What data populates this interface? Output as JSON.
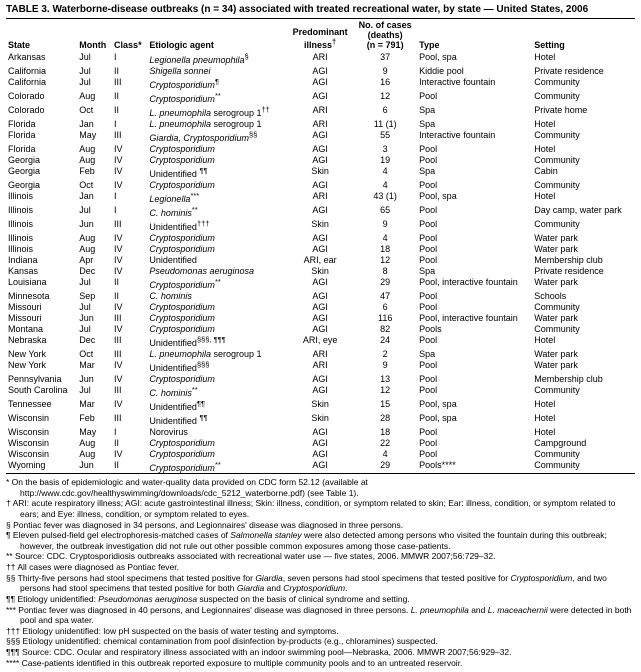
{
  "title": "TABLE 3. Waterborne-disease outbreaks (n = 34) associated with treated recreational water, by state — United States, 2006",
  "header": {
    "state": "State",
    "month": "Month",
    "class": "Class*",
    "agent": "Etiologic agent",
    "illness": "Predominant illness†",
    "cases": "No. of cases (deaths) (n = 791)",
    "type": "Type",
    "setting": "Setting"
  },
  "rows": [
    {
      "state": "Arkansas",
      "month": "Jul",
      "class": "I",
      "agent": "Legionella pneumophila§",
      "illness": "ARI",
      "cases": "37",
      "type": "Pool, spa",
      "setting": "Hotel"
    },
    {
      "state": "California",
      "month": "Jul",
      "class": "II",
      "agent": "Shigella sonnei",
      "illness": "AGI",
      "cases": "9",
      "type": "Kiddie pool",
      "setting": "Private residence"
    },
    {
      "state": "California",
      "month": "Jul",
      "class": "III",
      "agent": "Cryptosporidium¶",
      "illness": "AGI",
      "cases": "16",
      "type": "Interactive fountain",
      "setting": "Community"
    },
    {
      "state": "Colorado",
      "month": "Aug",
      "class": "II",
      "agent": "Cryptosporidium**",
      "illness": "AGI",
      "cases": "12",
      "type": "Pool",
      "setting": "Community"
    },
    {
      "state": "Colorado",
      "month": "Oct",
      "class": "II",
      "agent": "L. pneumophila serogroup 1††",
      "illness": "ARI",
      "cases": "6",
      "type": "Spa",
      "setting": "Private home"
    },
    {
      "state": "Florida",
      "month": "Jan",
      "class": "I",
      "agent": "L. pneumophila serogroup 1",
      "illness": "ARI",
      "cases": "11 (1)",
      "type": "Spa",
      "setting": "Hotel"
    },
    {
      "state": "Florida",
      "month": "May",
      "class": "III",
      "agent": "Giardia, Cryptosporidium§§",
      "illness": "AGI",
      "cases": "55",
      "type": "Interactive fountain",
      "setting": "Community"
    },
    {
      "state": "Florida",
      "month": "Aug",
      "class": "IV",
      "agent": "Cryptosporidium",
      "illness": "AGI",
      "cases": "3",
      "type": "Pool",
      "setting": "Hotel"
    },
    {
      "state": "Georgia",
      "month": "Aug",
      "class": "IV",
      "agent": "Cryptosporidium",
      "illness": "AGI",
      "cases": "19",
      "type": "Pool",
      "setting": "Community"
    },
    {
      "state": "Georgia",
      "month": "Feb",
      "class": "IV",
      "agent": "Unidentified ¶¶",
      "illness": "Skin",
      "cases": "4",
      "type": "Spa",
      "setting": "Cabin"
    },
    {
      "state": "Georgia",
      "month": "Oct",
      "class": "IV",
      "agent": "Cryptosporidium",
      "illness": "AGI",
      "cases": "4",
      "type": "Pool",
      "setting": "Community"
    },
    {
      "state": "Illinois",
      "month": "Jan",
      "class": "I",
      "agent": "Legionella***",
      "illness": "ARI",
      "cases": "43 (1)",
      "type": "Pool, spa",
      "setting": "Hotel"
    },
    {
      "state": "Illinois",
      "month": "Jul",
      "class": "I",
      "agent": "C. hominis**",
      "illness": "AGI",
      "cases": "65",
      "type": "Pool",
      "setting": "Day camp, water park"
    },
    {
      "state": "Illinois",
      "month": "Jun",
      "class": "III",
      "agent": "Unidentified†††",
      "illness": "Skin",
      "cases": "9",
      "type": "Pool",
      "setting": "Community"
    },
    {
      "state": "Illinois",
      "month": "Aug",
      "class": "IV",
      "agent": "Cryptosporidium",
      "illness": "AGI",
      "cases": "4",
      "type": "Pool",
      "setting": "Water park"
    },
    {
      "state": "Illinois",
      "month": "Aug",
      "class": "IV",
      "agent": "Cryptosporidium",
      "illness": "AGI",
      "cases": "18",
      "type": "Pool",
      "setting": "Water park"
    },
    {
      "state": "Indiana",
      "month": "Apr",
      "class": "IV",
      "agent": "Unidentified",
      "illness": "ARI, ear",
      "cases": "12",
      "type": "Pool",
      "setting": "Membership club"
    },
    {
      "state": "Kansas",
      "month": "Dec",
      "class": "IV",
      "agent": "Pseudomonas aeruginosa",
      "illness": "Skin",
      "cases": "8",
      "type": "Spa",
      "setting": "Private residence"
    },
    {
      "state": "Louisiana",
      "month": "Jul",
      "class": "II",
      "agent": "Cryptosporidium**",
      "illness": "AGI",
      "cases": "29",
      "type": "Pool, interactive fountain",
      "setting": "Water park"
    },
    {
      "state": "Minnesota",
      "month": "Sep",
      "class": "II",
      "agent": "C. hominis",
      "illness": "AGI",
      "cases": "47",
      "type": "Pool",
      "setting": "Schools"
    },
    {
      "state": "Missouri",
      "month": "Jul",
      "class": "IV",
      "agent": "Cryptosporidium",
      "illness": "AGI",
      "cases": "6",
      "type": "Pool",
      "setting": "Community"
    },
    {
      "state": "Missouri",
      "month": "Jun",
      "class": "III",
      "agent": "Cryptosporidium",
      "illness": "AGI",
      "cases": "116",
      "type": "Pool, interactive fountain",
      "setting": "Water park"
    },
    {
      "state": "Montana",
      "month": "Jul",
      "class": "IV",
      "agent": "Cryptosporidium",
      "illness": "AGI",
      "cases": "82",
      "type": "Pools",
      "setting": "Community"
    },
    {
      "state": "Nebraska",
      "month": "Dec",
      "class": "III",
      "agent": "Unidentified§§§, ¶¶¶",
      "illness": "ARI, eye",
      "cases": "24",
      "type": "Pool",
      "setting": "Hotel"
    },
    {
      "state": "New York",
      "month": "Oct",
      "class": "III",
      "agent": "L. pneumophila serogroup 1",
      "illness": "ARI",
      "cases": "2",
      "type": "Spa",
      "setting": "Water park"
    },
    {
      "state": "New York",
      "month": "Mar",
      "class": "IV",
      "agent": "Unidentified§§§",
      "illness": "ARI",
      "cases": "9",
      "type": "Pool",
      "setting": "Water park"
    },
    {
      "state": "Pennsylvania",
      "month": "Jun",
      "class": "IV",
      "agent": "Cryptosporidium",
      "illness": "AGI",
      "cases": "13",
      "type": "Pool",
      "setting": "Membership club"
    },
    {
      "state": "South Carolina",
      "month": "Jul",
      "class": "III",
      "agent": "C. hominis**",
      "illness": "AGI",
      "cases": "12",
      "type": "Pool",
      "setting": "Community"
    },
    {
      "state": "Tennessee",
      "month": "Mar",
      "class": "IV",
      "agent": "Unidentified¶¶",
      "illness": "Skin",
      "cases": "15",
      "type": "Pool, spa",
      "setting": "Hotel"
    },
    {
      "state": "Wisconsin",
      "month": "Feb",
      "class": "III",
      "agent": "Unidentified ¶¶",
      "illness": "Skin",
      "cases": "28",
      "type": "Pool, spa",
      "setting": "Hotel"
    },
    {
      "state": "Wisconsin",
      "month": "May",
      "class": "I",
      "agent": "Norovirus",
      "illness": "AGI",
      "cases": "18",
      "type": "Pool",
      "setting": "Hotel"
    },
    {
      "state": "Wisconsin",
      "month": "Aug",
      "class": "II",
      "agent": "Cryptosporidium",
      "illness": "AGI",
      "cases": "22",
      "type": "Pool",
      "setting": "Campground"
    },
    {
      "state": "Wisconsin",
      "month": "Aug",
      "class": "IV",
      "agent": "Cryptosporidium",
      "illness": "AGI",
      "cases": "4",
      "type": "Pool",
      "setting": "Community"
    },
    {
      "state": "Wyoming",
      "month": "Jun",
      "class": "II",
      "agent": "Cryptosporidium**",
      "illness": "AGI",
      "cases": "29",
      "type": "Pools****",
      "setting": "Community"
    }
  ],
  "italic_agents": [
    "Legionella pneumophila",
    "Shigella sonnei",
    "Cryptosporidium",
    "L. pneumophila",
    "Giardia, Cryptosporidium",
    "Legionella",
    "C. hominis",
    "Pseudomonas aeruginosa",
    "Giardia"
  ],
  "footnotes": [
    {
      "sym": "*",
      "text": "On the basis of epidemiologic and water-quality data provided on CDC form 52.12 (available at http://www.cdc.gov/healthyswimming/downloads/cdc_5212_waterborne.pdf) (see Table 1)."
    },
    {
      "sym": "†",
      "text": "ARI: acute respiratory illness; AGI: acute gastrointestinal illness; Skin: illness, condition, or symptom related to skin; Ear: illness, condition, or symptom related to ears; and Eye: illness, condition, or symptom related to eyes."
    },
    {
      "sym": "§",
      "text": "Pontiac fever was diagnosed in 34 persons, and Legionnaires' disease was diagnosed in three persons."
    },
    {
      "sym": "¶",
      "text": "Eleven pulsed-field gel electrophoresis-matched cases of Salmonella stanley were also detected among persons who visited the fountain during this outbreak; however, the outbreak investigation did not rule out other possible common exposures among those case-patients."
    },
    {
      "sym": "**",
      "text": "Source: CDC. Cryptosporidiosis outbreaks associated with recreational water use — five states, 2006. MMWR 2007;56:729–32."
    },
    {
      "sym": "††",
      "text": "All cases were diagnosed as Pontiac fever."
    },
    {
      "sym": "§§",
      "text": "Thirty-five persons had stool specimens that tested positive for Giardia, seven persons had stool specimens that tested positive for Cryptosporidium, and two persons had stool specimens that tested positive for both Giardia and Cryptosporidium."
    },
    {
      "sym": "¶¶",
      "text": "Etiology unidentified: Pseudomonas aeruginosa suspected on the basis of clinical syndrome and setting."
    },
    {
      "sym": "***",
      "text": "Pontiac fever was diagnosed in 40 persons, and Legionnaires' disease was diagnosed in three persons. L. pneumophila and L. maceachernii were detected in both pool and spa water."
    },
    {
      "sym": "†††",
      "text": "Etiology unidentified: low pH suspected on the basis of water testing and symptoms."
    },
    {
      "sym": "§§§",
      "text": "Etiology unidentified: chemical contamination from pool disinfection by-products (e.g., chloramines) suspected."
    },
    {
      "sym": "¶¶¶",
      "text": "Source: CDC. Ocular and respiratory illness associated with an indoor swimming pool—Nebraska, 2006. MMWR 2007;56:929–32."
    },
    {
      "sym": "****",
      "text": "Case-patients identified in this outbreak reported exposure to multiple community pools and to an untreated reservoir."
    }
  ]
}
